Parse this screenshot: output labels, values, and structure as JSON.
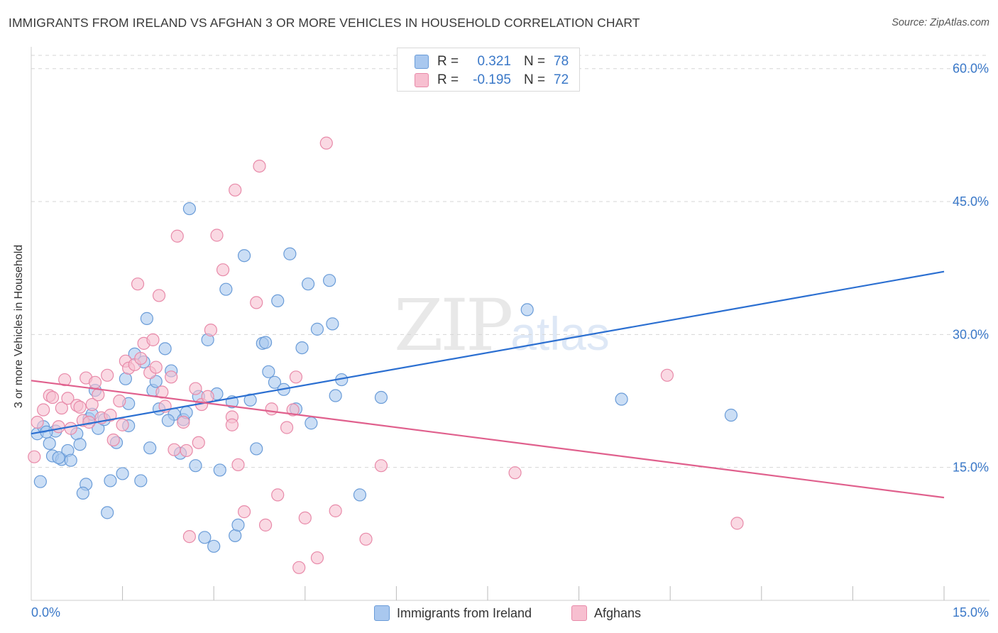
{
  "title": "IMMIGRANTS FROM IRELAND VS AFGHAN 3 OR MORE VEHICLES IN HOUSEHOLD CORRELATION CHART",
  "source": "Source: ZipAtlas.com",
  "watermark": {
    "zip": "ZIP",
    "atlas": "atlas"
  },
  "legend": {
    "rows": [
      {
        "r_label": "R =",
        "r_value": "0.321",
        "n_label": "N =",
        "n_value": "78"
      },
      {
        "r_label": "R =",
        "r_value": "-0.195",
        "n_label": "N =",
        "n_value": "72"
      }
    ]
  },
  "bottom_legend": [
    "Immigrants from Ireland",
    "Afghans"
  ],
  "colors": {
    "ireland_fill": "#a9c8ef",
    "ireland_stroke": "#6a9cd8",
    "ireland_line": "#2b6fd1",
    "afghan_fill": "#f7bfd0",
    "afghan_stroke": "#e88aa9",
    "afghan_line": "#e0608d",
    "axis_label": "#3a78c8",
    "grid": "#d6d6d6"
  },
  "chart_data": {
    "type": "scatter",
    "title": "IMMIGRANTS FROM IRELAND VS AFGHAN 3 OR MORE VEHICLES IN HOUSEHOLD CORRELATION CHART",
    "xlabel": "",
    "ylabel": "3 or more Vehicles in Household",
    "xlim": [
      0,
      15
    ],
    "ylim": [
      0,
      61.5
    ],
    "x_tick_labels": [
      "0.0%",
      "15.0%"
    ],
    "y_ticks": [
      15,
      30,
      45,
      60
    ],
    "y_tick_labels": [
      "15.0%",
      "30.0%",
      "45.0%",
      "60.0%"
    ],
    "grid": true,
    "legend_position": "top-center",
    "series": [
      {
        "name": "Immigrants from Ireland",
        "r": 0.321,
        "n": 78,
        "trend": [
          [
            0,
            18.8
          ],
          [
            15,
            37.1
          ]
        ],
        "points": [
          [
            0.1,
            18.8
          ],
          [
            0.2,
            19.6
          ],
          [
            0.3,
            17.7
          ],
          [
            0.35,
            16.3
          ],
          [
            0.4,
            19.1
          ],
          [
            0.5,
            15.9
          ],
          [
            0.6,
            16.9
          ],
          [
            0.65,
            15.8
          ],
          [
            0.75,
            18.8
          ],
          [
            0.8,
            17.6
          ],
          [
            0.9,
            13.1
          ],
          [
            0.95,
            20.5
          ],
          [
            1.0,
            21.0
          ],
          [
            1.05,
            23.7
          ],
          [
            1.1,
            19.4
          ],
          [
            1.2,
            20.4
          ],
          [
            1.3,
            13.5
          ],
          [
            1.4,
            17.8
          ],
          [
            1.5,
            14.3
          ],
          [
            1.55,
            25.0
          ],
          [
            1.6,
            19.7
          ],
          [
            1.7,
            27.8
          ],
          [
            1.8,
            13.5
          ],
          [
            1.85,
            26.9
          ],
          [
            1.9,
            31.8
          ],
          [
            1.95,
            17.2
          ],
          [
            2.0,
            23.7
          ],
          [
            2.05,
            24.7
          ],
          [
            2.1,
            21.6
          ],
          [
            2.2,
            28.4
          ],
          [
            2.3,
            25.9
          ],
          [
            2.35,
            21.0
          ],
          [
            2.45,
            16.6
          ],
          [
            2.5,
            20.4
          ],
          [
            2.55,
            21.2
          ],
          [
            2.6,
            44.2
          ],
          [
            2.7,
            15.2
          ],
          [
            2.75,
            23.0
          ],
          [
            2.85,
            7.1
          ],
          [
            2.9,
            29.4
          ],
          [
            3.0,
            6.1
          ],
          [
            3.05,
            23.3
          ],
          [
            3.1,
            14.7
          ],
          [
            3.2,
            35.1
          ],
          [
            3.35,
            7.3
          ],
          [
            3.4,
            8.5
          ],
          [
            3.5,
            38.9
          ],
          [
            3.6,
            22.6
          ],
          [
            3.7,
            17.1
          ],
          [
            3.8,
            29.0
          ],
          [
            3.9,
            25.8
          ],
          [
            4.0,
            24.6
          ],
          [
            4.05,
            33.8
          ],
          [
            4.15,
            23.8
          ],
          [
            4.25,
            39.1
          ],
          [
            4.35,
            21.6
          ],
          [
            4.45,
            28.5
          ],
          [
            4.55,
            35.7
          ],
          [
            4.6,
            20.0
          ],
          [
            4.7,
            30.6
          ],
          [
            4.9,
            36.1
          ],
          [
            4.95,
            31.2
          ],
          [
            5.0,
            23.1
          ],
          [
            5.1,
            24.9
          ],
          [
            5.4,
            11.9
          ],
          [
            5.75,
            22.9
          ],
          [
            8.15,
            32.8
          ],
          [
            9.7,
            22.7
          ],
          [
            11.5,
            20.9
          ],
          [
            0.15,
            13.4
          ],
          [
            0.85,
            12.1
          ],
          [
            1.25,
            9.9
          ],
          [
            0.45,
            16.1
          ],
          [
            1.6,
            22.2
          ],
          [
            2.25,
            20.3
          ],
          [
            3.3,
            22.4
          ],
          [
            3.85,
            29.1
          ],
          [
            0.25,
            19.0
          ]
        ]
      },
      {
        "name": "Afghans",
        "r": -0.195,
        "n": 72,
        "trend": [
          [
            0,
            24.8
          ],
          [
            15,
            11.6
          ]
        ],
        "points": [
          [
            0.05,
            16.2
          ],
          [
            0.1,
            20.1
          ],
          [
            0.2,
            21.5
          ],
          [
            0.3,
            23.1
          ],
          [
            0.35,
            22.9
          ],
          [
            0.45,
            19.6
          ],
          [
            0.5,
            21.7
          ],
          [
            0.55,
            24.9
          ],
          [
            0.6,
            22.8
          ],
          [
            0.65,
            19.4
          ],
          [
            0.75,
            22.0
          ],
          [
            0.8,
            21.8
          ],
          [
            0.85,
            20.3
          ],
          [
            0.9,
            25.1
          ],
          [
            0.95,
            20.1
          ],
          [
            1.0,
            22.1
          ],
          [
            1.05,
            24.6
          ],
          [
            1.1,
            23.2
          ],
          [
            1.15,
            20.6
          ],
          [
            1.25,
            25.4
          ],
          [
            1.3,
            20.9
          ],
          [
            1.35,
            18.1
          ],
          [
            1.45,
            22.5
          ],
          [
            1.5,
            19.8
          ],
          [
            1.55,
            27.0
          ],
          [
            1.6,
            26.2
          ],
          [
            1.7,
            26.6
          ],
          [
            1.75,
            35.7
          ],
          [
            1.8,
            27.3
          ],
          [
            1.85,
            29.0
          ],
          [
            1.95,
            25.7
          ],
          [
            2.0,
            29.4
          ],
          [
            2.05,
            26.3
          ],
          [
            2.1,
            34.4
          ],
          [
            2.15,
            23.5
          ],
          [
            2.2,
            21.9
          ],
          [
            2.3,
            25.2
          ],
          [
            2.35,
            17.0
          ],
          [
            2.4,
            41.1
          ],
          [
            2.5,
            20.1
          ],
          [
            2.55,
            16.9
          ],
          [
            2.6,
            7.2
          ],
          [
            2.7,
            23.9
          ],
          [
            2.75,
            17.8
          ],
          [
            2.8,
            22.1
          ],
          [
            2.9,
            23.0
          ],
          [
            2.95,
            30.5
          ],
          [
            3.05,
            41.2
          ],
          [
            3.15,
            37.3
          ],
          [
            3.3,
            20.7
          ],
          [
            3.35,
            46.3
          ],
          [
            3.4,
            15.3
          ],
          [
            3.5,
            10.0
          ],
          [
            3.7,
            33.6
          ],
          [
            3.75,
            49.0
          ],
          [
            3.85,
            8.5
          ],
          [
            3.95,
            21.6
          ],
          [
            4.05,
            11.9
          ],
          [
            4.3,
            21.5
          ],
          [
            4.35,
            25.2
          ],
          [
            4.4,
            3.7
          ],
          [
            4.5,
            9.3
          ],
          [
            4.7,
            4.8
          ],
          [
            4.85,
            51.6
          ],
          [
            5.0,
            10.1
          ],
          [
            5.5,
            6.9
          ],
          [
            5.75,
            15.2
          ],
          [
            7.95,
            14.4
          ],
          [
            10.45,
            25.4
          ],
          [
            11.6,
            8.7
          ],
          [
            4.2,
            19.5
          ],
          [
            3.3,
            19.8
          ]
        ]
      }
    ]
  }
}
